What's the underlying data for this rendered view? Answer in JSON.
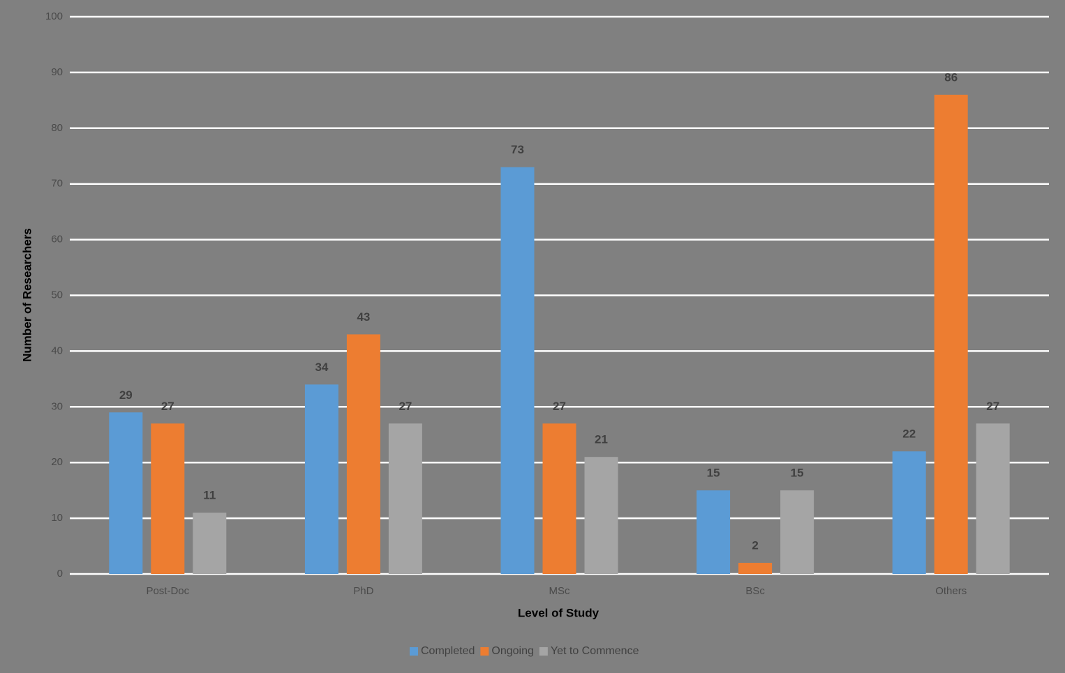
{
  "chart_data": {
    "type": "bar",
    "x_label": "Level of Study",
    "y_label": "Number of Researchers",
    "categories": [
      "Post-Doc",
      "PhD",
      "MSc",
      "BSc",
      "Others"
    ],
    "series": [
      {
        "name": "Completed",
        "color": "#5b9bd5",
        "values": [
          29,
          34,
          73,
          15,
          22
        ]
      },
      {
        "name": "Ongoing",
        "color": "#ed7d31",
        "values": [
          27,
          43,
          27,
          2,
          86
        ]
      },
      {
        "name": "Yet to Commence",
        "color": "#a5a5a5",
        "values": [
          11,
          27,
          21,
          15,
          27
        ]
      }
    ],
    "ylim": [
      0,
      100
    ],
    "yticks": [
      0,
      10,
      20,
      30,
      40,
      50,
      60,
      70,
      80,
      90,
      100
    ],
    "grid": true,
    "legend": "bottom"
  }
}
